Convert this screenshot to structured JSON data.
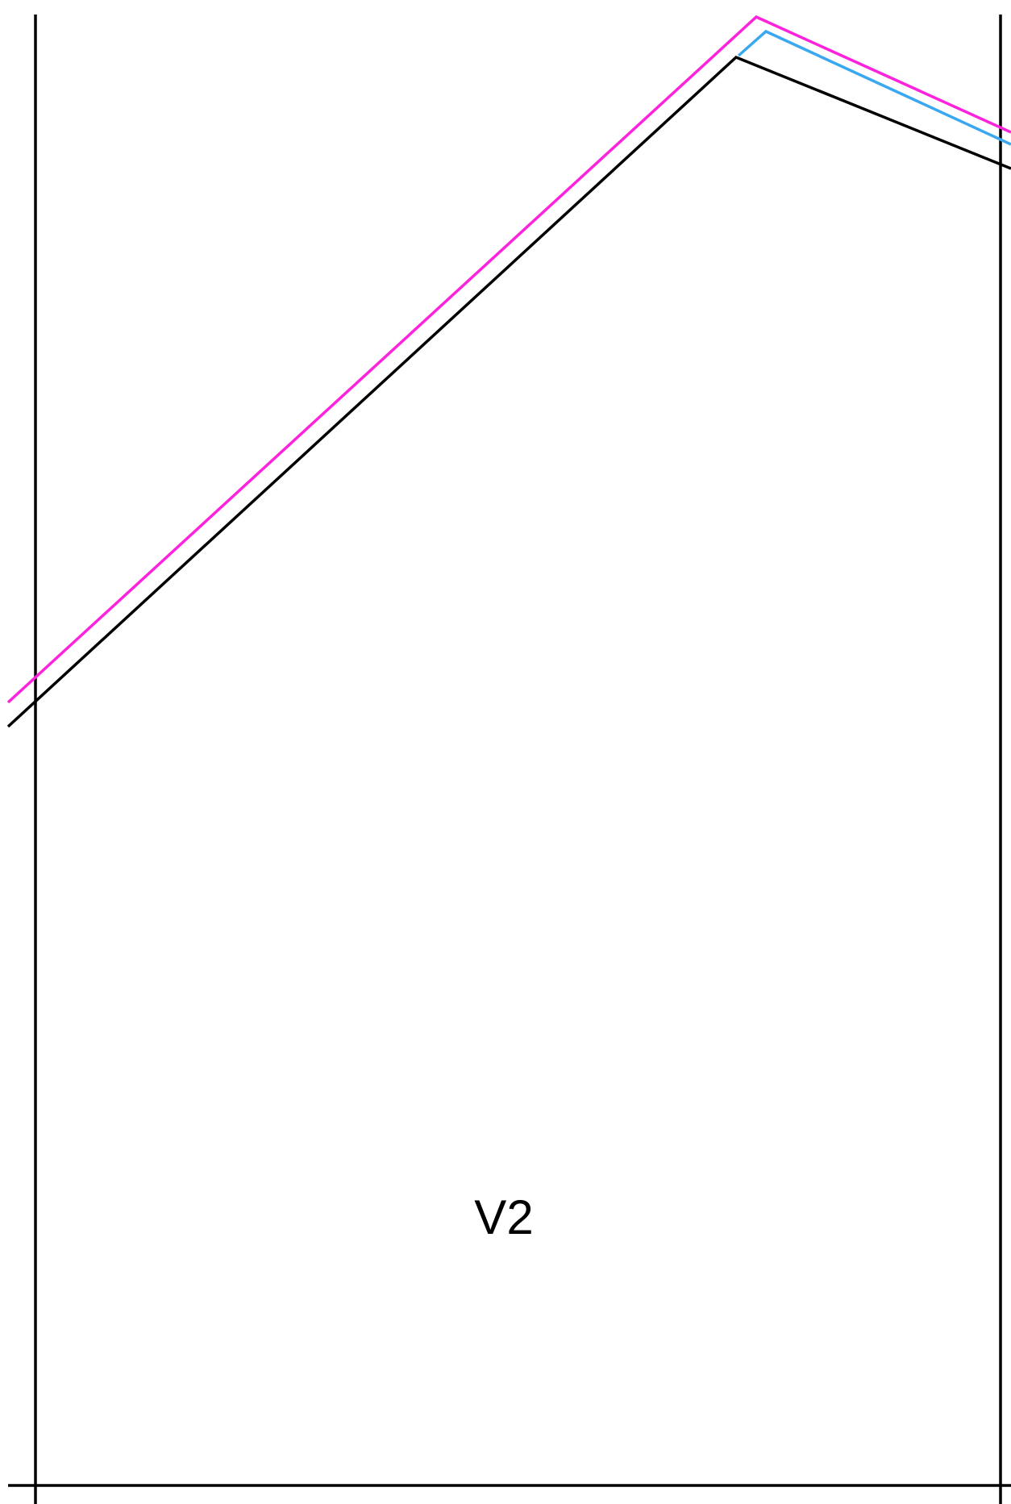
{
  "label": "V2"
}
